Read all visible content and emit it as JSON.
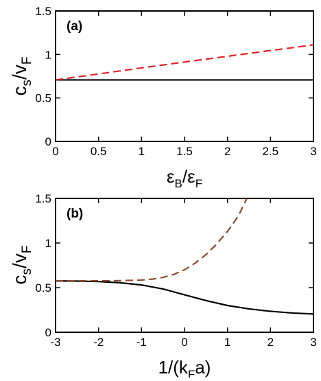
{
  "chart_data": [
    {
      "type": "line",
      "panel_label": "(a)",
      "xlabel": "ε_B/ε_F",
      "ylabel": "c_s/v_F",
      "xlim": [
        0,
        3
      ],
      "ylim": [
        0,
        1.5
      ],
      "xticks": [
        0,
        0.5,
        1,
        1.5,
        2,
        2.5,
        3
      ],
      "yticks": [
        0,
        0.5,
        1,
        1.5
      ],
      "xtick_labels": [
        "0",
        "0.5",
        "1",
        "1.5",
        "2",
        "2.5",
        "3"
      ],
      "ytick_labels": [
        "0",
        "0.5",
        "1",
        "1.5"
      ],
      "grid": false,
      "series": [
        {
          "color": "#000000",
          "dash": "solid",
          "x": [
            0,
            3
          ],
          "y": [
            0.707,
            0.707
          ]
        },
        {
          "color": "#e0262a",
          "dash": "dashed",
          "x": [
            0,
            0.5,
            1,
            1.5,
            2,
            2.5,
            3
          ],
          "y": [
            0.707,
            0.776,
            0.845,
            0.913,
            0.979,
            1.045,
            1.11
          ]
        }
      ]
    },
    {
      "type": "line",
      "panel_label": "(b)",
      "xlabel": "1/(k_F a)",
      "ylabel": "c_s/v_F",
      "xlim": [
        -3,
        3
      ],
      "ylim": [
        0,
        1.5
      ],
      "xticks": [
        -3,
        -2,
        -1,
        0,
        1,
        2,
        3
      ],
      "yticks": [
        0,
        0.5,
        1,
        1.5
      ],
      "xtick_labels": [
        "-3",
        "-2",
        "-1",
        "0",
        "1",
        "2",
        "3"
      ],
      "ytick_labels": [
        "0",
        "0.5",
        "1",
        "1.5"
      ],
      "grid": false,
      "series": [
        {
          "color": "#000000",
          "dash": "solid",
          "x": [
            -3,
            -2.5,
            -2,
            -1.5,
            -1,
            -0.5,
            0,
            0.5,
            1,
            1.5,
            2,
            2.5,
            3
          ],
          "y": [
            0.575,
            0.573,
            0.568,
            0.555,
            0.53,
            0.485,
            0.42,
            0.355,
            0.3,
            0.262,
            0.235,
            0.216,
            0.205
          ]
        },
        {
          "color": "#8b4a2b",
          "dash": "dashed",
          "x": [
            -3,
            -2.5,
            -2,
            -1.5,
            -1,
            -0.75,
            -0.5,
            -0.25,
            0,
            0.25,
            0.5,
            0.75,
            1,
            1.25,
            1.45
          ],
          "y": [
            0.577,
            0.577,
            0.577,
            0.578,
            0.585,
            0.595,
            0.615,
            0.648,
            0.7,
            0.775,
            0.87,
            0.99,
            1.13,
            1.3,
            1.5
          ]
        }
      ]
    }
  ]
}
